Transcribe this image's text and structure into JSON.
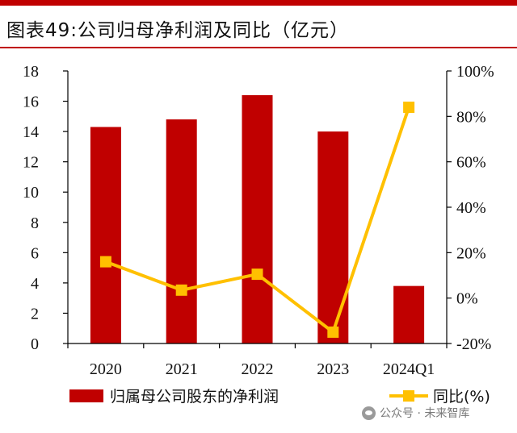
{
  "figure": {
    "title": "图表49:公司归母净利润及同比（亿元）"
  },
  "watermark": {
    "text": "公众号 · 未来智库"
  },
  "colors": {
    "bar": "#c00000",
    "line": "#ffc000",
    "accent": "#c00000"
  },
  "chart_data": {
    "type": "bar",
    "categories": [
      "2020",
      "2021",
      "2022",
      "2023",
      "2024Q1"
    ],
    "series": [
      {
        "name": "归属母公司股东的净利润",
        "kind": "bar",
        "axis": "left",
        "values": [
          14.3,
          14.8,
          16.4,
          14.0,
          3.8
        ]
      },
      {
        "name": "同比(%)",
        "kind": "line",
        "axis": "right",
        "values": [
          16,
          3.5,
          10.5,
          -15,
          84
        ]
      }
    ],
    "left_axis": {
      "ylim": [
        0,
        18
      ],
      "ticks": [
        "0",
        "2",
        "4",
        "6",
        "8",
        "10",
        "12",
        "14",
        "16",
        "18"
      ]
    },
    "right_axis": {
      "ylim": [
        -20,
        100
      ],
      "ticks": [
        "-20%",
        "0%",
        "20%",
        "40%",
        "60%",
        "80%",
        "100%"
      ]
    },
    "legend": [
      "归属母公司股东的净利润",
      "同比(%)"
    ],
    "legend_position": "bottom"
  }
}
